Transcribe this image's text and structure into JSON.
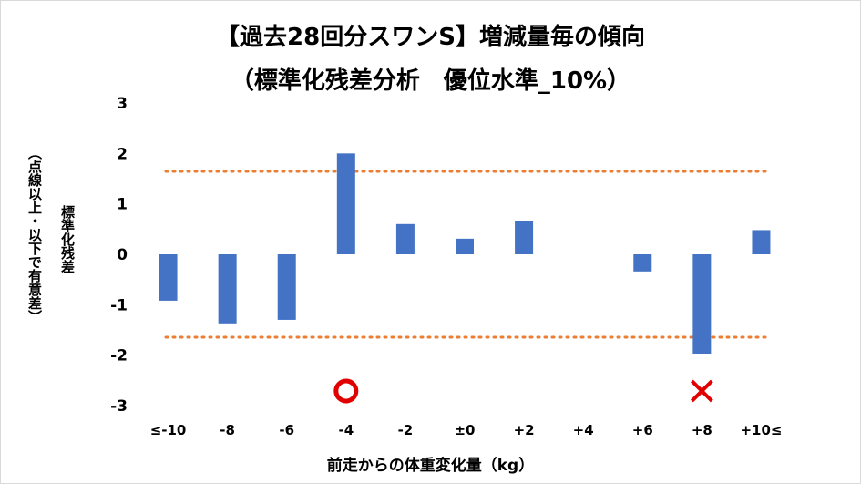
{
  "chart_data": {
    "type": "bar",
    "title": "【過去28回分スワンS】増減量毎の傾向",
    "subtitle": "（標準化残差分析　優位水準_10%）",
    "ylabel_main": "標準化残差",
    "ylabel_sub": "（点線以上・以下で有意差）",
    "xlabel": "前走からの体重変化量（kg）",
    "categories": [
      "≤-10",
      "-8",
      "-6",
      "-4",
      "-2",
      "±0",
      "+2",
      "+4",
      "+6",
      "+8",
      "+10≤"
    ],
    "values": [
      -0.92,
      -1.37,
      -1.3,
      2.0,
      0.6,
      0.31,
      0.66,
      0,
      -0.34,
      -1.97,
      0.48
    ],
    "ylim": [
      -3,
      3
    ],
    "yticks": [
      "3",
      "2",
      "1",
      "0",
      "-1",
      "-2",
      "-3"
    ],
    "threshold": 1.645,
    "bar_color": "#4472c4",
    "threshold_color": "#ed7d31",
    "markers": [
      {
        "category": "-4",
        "symbol": "circle",
        "color": "#e00000"
      },
      {
        "category": "+8",
        "symbol": "cross",
        "color": "#e00000"
      }
    ],
    "grid": false
  }
}
